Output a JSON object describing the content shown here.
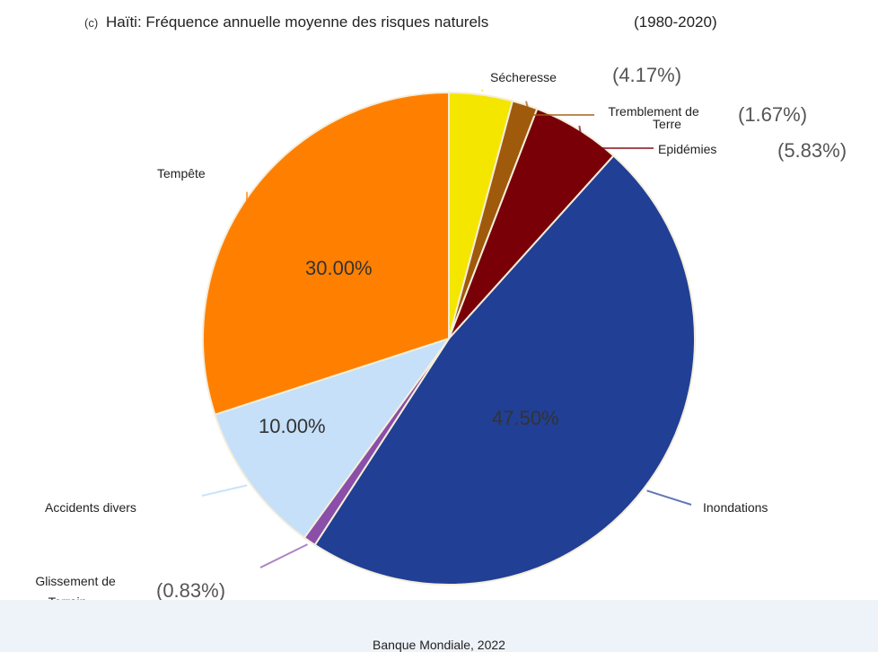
{
  "chart_data": {
    "type": "pie",
    "title_prefix": "(c)",
    "title": "Haïti: Fréquence annuelle moyenne des risques naturels",
    "period": "(1980-2020)",
    "slices": [
      {
        "label": "Sécheresse",
        "value": 4.17,
        "pct_label": "(4.17%)",
        "color": "#f5e600"
      },
      {
        "label": "Tremblement de Terre",
        "value": 1.67,
        "pct_label": "(1.67%)",
        "color": "#a05a0c"
      },
      {
        "label": "Epidémies",
        "value": 5.83,
        "pct_label": "(5.83%)",
        "color": "#7a0008"
      },
      {
        "label": "Inondations",
        "value": 47.5,
        "pct_label": "47.50%",
        "color": "#213f94"
      },
      {
        "label": "Glissement de Terrain",
        "value": 0.83,
        "pct_label": "(0.83%)",
        "color": "#8a4fa8"
      },
      {
        "label": "Accidents divers",
        "value": 10.0,
        "pct_label": "10.00%",
        "color": "#c5e0f8"
      },
      {
        "label": "Tempête",
        "value": 30.0,
        "pct_label": "30.00%",
        "color": "#ff8000"
      }
    ],
    "source": "Banque Mondiale, 2022"
  }
}
